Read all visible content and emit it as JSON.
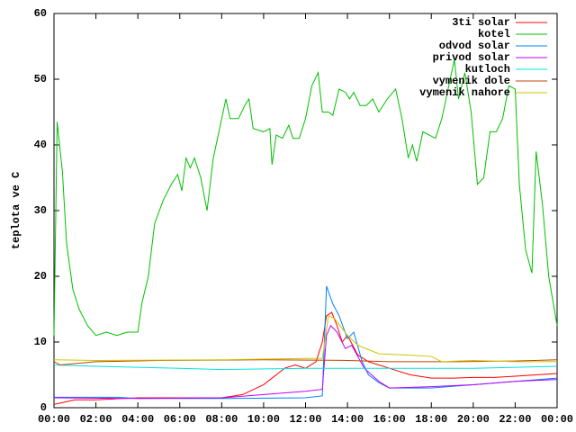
{
  "chart_data": {
    "type": "line",
    "y_label": "teplota ve C",
    "xlim": [
      0,
      24
    ],
    "xticks": [
      {
        "value": 0,
        "label": "00:00"
      },
      {
        "value": 2,
        "label": "02:00"
      },
      {
        "value": 4,
        "label": "04:00"
      },
      {
        "value": 6,
        "label": "06:00"
      },
      {
        "value": 8,
        "label": "08:00"
      },
      {
        "value": 10,
        "label": "10:00"
      },
      {
        "value": 12,
        "label": "12:00"
      },
      {
        "value": 14,
        "label": "14:00"
      },
      {
        "value": 16,
        "label": "16:00"
      },
      {
        "value": 18,
        "label": "18:00"
      },
      {
        "value": 20,
        "label": "20:00"
      },
      {
        "value": 22,
        "label": "22:00"
      },
      {
        "value": 24,
        "label": "00:00"
      }
    ],
    "ylim": [
      0,
      60
    ],
    "yticks": [
      0,
      10,
      20,
      30,
      40,
      50,
      60
    ],
    "grid": false,
    "legend": "top-right",
    "series": [
      {
        "name": "3ti solar",
        "color": "#ff0000",
        "x": [
          0,
          1,
          2,
          4,
          6,
          8,
          9,
          10,
          11,
          11.5,
          12,
          12.5,
          12.8,
          13,
          13.25,
          13.5,
          13.75,
          14,
          14.5,
          15,
          16,
          17,
          18,
          19,
          20,
          21,
          22,
          23,
          24
        ],
        "values": [
          0.5,
          1.2,
          1.2,
          1.5,
          1.5,
          1.5,
          2,
          3.5,
          6,
          6.5,
          6,
          7,
          10,
          14,
          14.5,
          12.5,
          10,
          11,
          8,
          7,
          6,
          5,
          4.5,
          4.5,
          4.6,
          4.6,
          4.8,
          5,
          5.2
        ]
      },
      {
        "name": "kotel",
        "color": "#00c000",
        "x": [
          0,
          0.15,
          0.4,
          0.6,
          0.9,
          1.2,
          1.6,
          2,
          2.5,
          3,
          3.5,
          4,
          4.2,
          4.5,
          4.8,
          5.2,
          5.6,
          5.9,
          6.1,
          6.3,
          6.5,
          6.7,
          7,
          7.3,
          7.6,
          8,
          8.2,
          8.4,
          8.8,
          9.1,
          9.3,
          9.5,
          10,
          10.3,
          10.4,
          10.6,
          10.9,
          11.2,
          11.4,
          11.7,
          12,
          12.3,
          12.6,
          12.8,
          13.1,
          13.3,
          13.6,
          13.9,
          14.1,
          14.3,
          14.6,
          14.9,
          15.2,
          15.5,
          15.9,
          16.3,
          16.6,
          16.9,
          17.1,
          17.3,
          17.6,
          17.9,
          18.2,
          18.5,
          18.8,
          19.1,
          19.3,
          19.6,
          19.9,
          20.2,
          20.5,
          20.8,
          21.1,
          21.4,
          21.7,
          22,
          22.2,
          22.5,
          22.8,
          23,
          23.3,
          23.6,
          24
        ],
        "values": [
          11,
          43.5,
          36,
          25,
          18,
          15,
          12.5,
          11,
          11.5,
          11,
          11.5,
          11.5,
          16,
          20,
          28,
          31.5,
          34,
          35.5,
          33,
          38,
          36.5,
          38,
          35,
          30,
          38,
          44,
          47,
          44,
          44,
          46,
          47,
          42.5,
          42,
          42.5,
          37,
          41.5,
          41,
          43,
          41,
          41,
          44,
          49,
          51,
          45,
          45,
          44.5,
          48.5,
          48,
          47,
          48,
          46,
          46,
          47,
          45,
          47,
          48.5,
          44,
          38,
          40,
          37.5,
          42,
          41.5,
          41,
          44,
          48.5,
          53,
          47,
          51,
          45,
          34,
          35,
          42,
          42,
          44,
          49,
          48.5,
          34,
          24,
          20.5,
          39,
          31,
          20,
          12.5
        ]
      },
      {
        "name": "odvod solar",
        "color": "#0080ff",
        "x": [
          0,
          3,
          4,
          8,
          12,
          12.8,
          13,
          13.3,
          13.6,
          14,
          14.3,
          14.7,
          15,
          15.5,
          16,
          18,
          20,
          22,
          24
        ],
        "values": [
          1.6,
          1.6,
          1.4,
          1.4,
          1.5,
          1.8,
          18.5,
          15.8,
          14,
          10.5,
          11.5,
          7,
          5,
          3.8,
          3,
          3,
          3.5,
          4,
          4.5
        ]
      },
      {
        "name": "privod solar",
        "color": "#c000ff",
        "x": [
          0,
          4,
          8,
          10,
          12,
          12.8,
          13,
          13.2,
          13.5,
          13.9,
          14.2,
          14.8,
          15.5,
          16,
          18,
          20,
          22,
          24
        ],
        "values": [
          1.5,
          1.4,
          1.5,
          2,
          2.5,
          2.8,
          11,
          12.5,
          11.5,
          9,
          9.5,
          6,
          4,
          3,
          3.2,
          3.5,
          4,
          4.3
        ]
      },
      {
        "name": "kutloch",
        "color": "#00e0e0",
        "x": [
          0,
          2,
          6,
          8,
          12,
          16,
          20,
          24
        ],
        "values": [
          6.5,
          6.3,
          6,
          5.8,
          6,
          6,
          6,
          6.3
        ]
      },
      {
        "name": "vymenik dole",
        "color": "#c04000",
        "x": [
          0,
          0.3,
          2,
          5,
          10,
          14,
          16,
          19,
          22,
          24
        ],
        "values": [
          7,
          6.5,
          7,
          7.2,
          7.3,
          7.2,
          7,
          7,
          7.1,
          7.3
        ]
      },
      {
        "name": "vymenik nahore",
        "color": "#c8c800",
        "x": [
          0,
          2,
          8,
          12,
          12.8,
          13.1,
          13.4,
          14,
          14.5,
          15.5,
          17,
          18,
          18.5,
          20,
          22,
          24
        ],
        "values": [
          7.3,
          7.2,
          7.3,
          7.5,
          7.5,
          14,
          13.5,
          11,
          9.5,
          8.2,
          8,
          7.8,
          7,
          7.2,
          7,
          7
        ]
      }
    ]
  }
}
